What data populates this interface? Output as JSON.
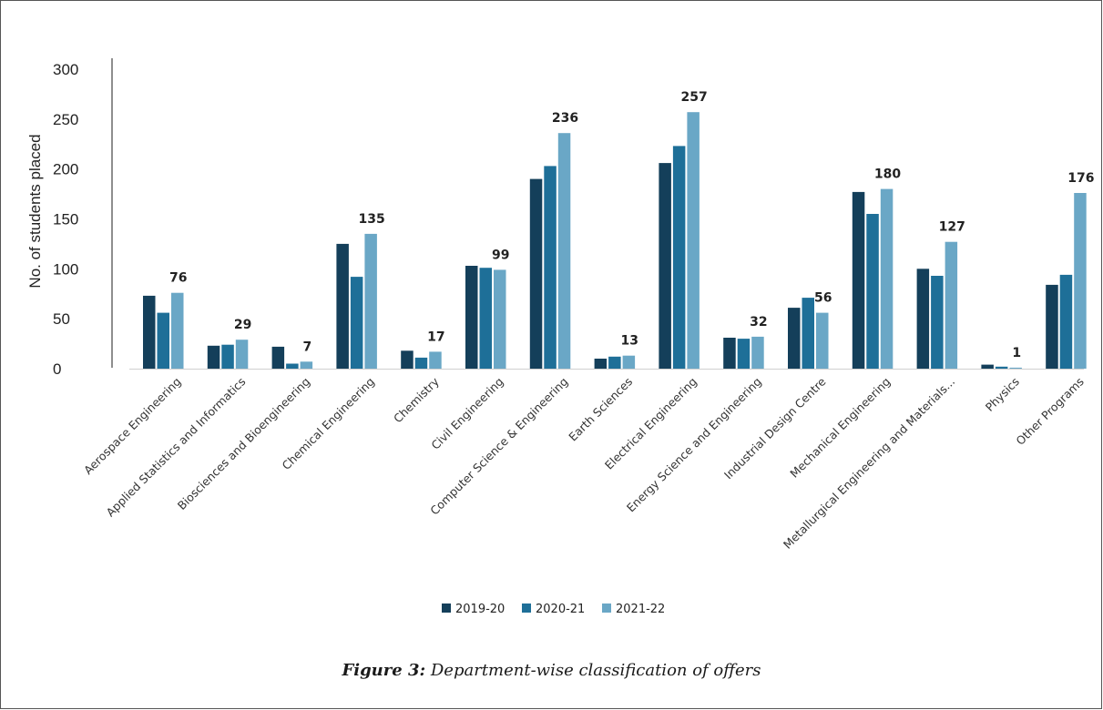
{
  "caption": {
    "label": "Figure 3:",
    "text": "Department-wise classification of offers"
  },
  "chart_data": {
    "type": "bar",
    "ylabel": "No. of students placed",
    "ylim": [
      0,
      300
    ],
    "yticks": [
      0,
      50,
      100,
      150,
      200,
      250,
      300
    ],
    "legend_position": "bottom",
    "categories": [
      "Aerospace Engineering",
      "Applied Statistics and Informatics",
      "Biosciences and Bioengineering",
      "Chemical Engineering",
      "Chemistry",
      "Civil Engineering",
      "Computer Science & Engineering",
      "Earth Sciences",
      "Electrical Engineering",
      "Energy Science and Engineering",
      "Industrial Design Centre",
      "Mechanical Engineering",
      "Metallurgical Engineering and Materials...",
      "Physics",
      "Other Programs"
    ],
    "series": [
      {
        "name": "2019-20",
        "color": "#143f5a",
        "values": [
          73,
          23,
          22,
          125,
          18,
          103,
          190,
          10,
          206,
          31,
          61,
          177,
          100,
          4,
          84
        ]
      },
      {
        "name": "2020-21",
        "color": "#1e6f98",
        "values": [
          56,
          24,
          5,
          92,
          11,
          101,
          203,
          12,
          223,
          30,
          71,
          155,
          93,
          2,
          94
        ]
      },
      {
        "name": "2021-22",
        "color": "#6aa7c6",
        "values": [
          76,
          29,
          7,
          135,
          17,
          99,
          236,
          13,
          257,
          32,
          56,
          180,
          127,
          1,
          176
        ]
      }
    ]
  }
}
